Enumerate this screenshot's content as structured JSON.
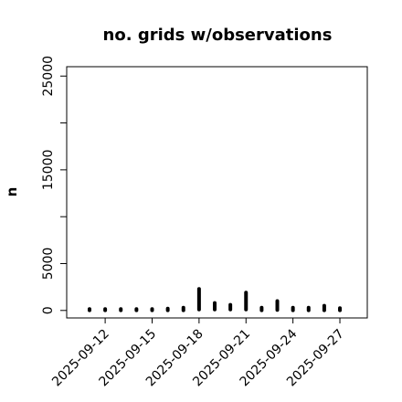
{
  "chart_data": {
    "type": "scatter",
    "title": "no. grids w/observations",
    "xlabel": "",
    "ylabel": "n",
    "ylim": [
      -800,
      26000
    ],
    "xlim": [
      "2025-09-09T13:00",
      "2025-09-28T18:00"
    ],
    "y_ticks_major": [
      0,
      5000,
      15000,
      25000
    ],
    "y_ticks_minor": [
      10000,
      20000
    ],
    "x_ticks": [
      {
        "label": "2025-09-12",
        "color": "#000000"
      },
      {
        "label": "2025-09-15",
        "color": "#000000"
      },
      {
        "label": "2025-09-18",
        "color": "#228B22"
      },
      {
        "label": "2025-09-21",
        "color": "#000000"
      },
      {
        "label": "2025-09-24",
        "color": "#000000"
      },
      {
        "label": "2025-09-27",
        "color": "#000000"
      }
    ],
    "grid": false,
    "point_color": "#000000",
    "series": [
      {
        "points": [
          {
            "date": "2025-09-11",
            "min": 20,
            "max": 150
          },
          {
            "date": "2025-09-12",
            "min": 20,
            "max": 150
          },
          {
            "date": "2025-09-13",
            "min": 20,
            "max": 150
          },
          {
            "date": "2025-09-14",
            "min": 20,
            "max": 150
          },
          {
            "date": "2025-09-15",
            "min": 20,
            "max": 150
          },
          {
            "date": "2025-09-16",
            "min": 20,
            "max": 200
          },
          {
            "date": "2025-09-17",
            "min": 20,
            "max": 300
          },
          {
            "date": "2025-09-18",
            "min": 100,
            "max": 2300
          },
          {
            "date": "2025-09-19",
            "min": 100,
            "max": 800
          },
          {
            "date": "2025-09-20",
            "min": 100,
            "max": 600
          },
          {
            "date": "2025-09-21",
            "min": 100,
            "max": 1900
          },
          {
            "date": "2025-09-22",
            "min": 20,
            "max": 300
          },
          {
            "date": "2025-09-23",
            "min": 50,
            "max": 1000
          },
          {
            "date": "2025-09-24",
            "min": 20,
            "max": 300
          },
          {
            "date": "2025-09-25",
            "min": 20,
            "max": 300
          },
          {
            "date": "2025-09-26",
            "min": 20,
            "max": 500
          },
          {
            "date": "2025-09-27",
            "min": 20,
            "max": 250
          }
        ]
      }
    ]
  }
}
